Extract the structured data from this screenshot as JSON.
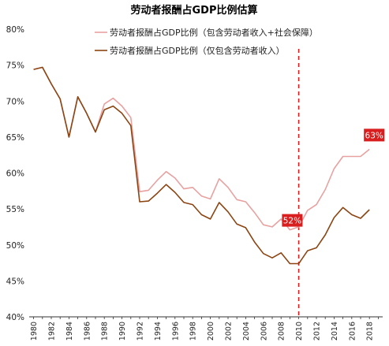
{
  "chart_data": {
    "type": "line",
    "title": "劳动者报酬占GDP比例估算",
    "xlabel": "",
    "ylabel": "",
    "ylim": [
      0.4,
      0.8
    ],
    "yticks": [
      "80%",
      "75%",
      "70%",
      "65%",
      "60%",
      "55%",
      "50%",
      "45%",
      "40%"
    ],
    "xlim": [
      1979.5,
      2019.5
    ],
    "xticks": [
      "1980",
      "1982",
      "1984",
      "1986",
      "1988",
      "1990",
      "1992",
      "1994",
      "1996",
      "1998",
      "2000",
      "2002",
      "2004",
      "2006",
      "2008",
      "2010",
      "2012",
      "2014",
      "2016",
      "2018"
    ],
    "legend_position": "top-center",
    "x": [
      1980,
      1981,
      1982,
      1983,
      1984,
      1985,
      1986,
      1987,
      1988,
      1989,
      1990,
      1991,
      1992,
      1993,
      1994,
      1995,
      1996,
      1997,
      1998,
      1999,
      2000,
      2001,
      2002,
      2003,
      2004,
      2005,
      2006,
      2007,
      2008,
      2009,
      2010,
      2011,
      2012,
      2013,
      2014,
      2015,
      2016,
      2017,
      2018
    ],
    "series": [
      {
        "name": "劳动者报酬占GDP比例（包含劳动者收入+社会保障）",
        "color": "#e8a1a1",
        "values": [
          0.744,
          0.747,
          0.724,
          0.703,
          0.65,
          0.706,
          0.683,
          0.657,
          0.696,
          0.704,
          0.693,
          0.677,
          0.574,
          0.576,
          0.59,
          0.602,
          0.593,
          0.578,
          0.58,
          0.568,
          0.564,
          0.592,
          0.58,
          0.563,
          0.56,
          0.545,
          0.528,
          0.525,
          0.536,
          0.521,
          0.525,
          0.548,
          0.556,
          0.577,
          0.606,
          0.623,
          0.623,
          0.623,
          0.633
        ]
      },
      {
        "name": "劳动者报酬占GDP比例（仅包含劳动者收入）",
        "color": "#8b4513",
        "values": [
          0.744,
          0.747,
          0.724,
          0.703,
          0.65,
          0.706,
          0.683,
          0.657,
          0.688,
          0.693,
          0.683,
          0.666,
          0.56,
          0.561,
          0.572,
          0.584,
          0.573,
          0.559,
          0.556,
          0.542,
          0.536,
          0.559,
          0.546,
          0.529,
          0.524,
          0.504,
          0.488,
          0.482,
          0.489,
          0.474,
          0.474,
          0.492,
          0.496,
          0.514,
          0.538,
          0.552,
          0.542,
          0.537,
          0.549
        ]
      }
    ],
    "reference_line": {
      "x": 2010,
      "color": "#d81e1e",
      "style": "dashed"
    },
    "annotations": [
      {
        "text": "52%",
        "x": 2009,
        "y": 0.521,
        "bg": "#d81e1e"
      },
      {
        "text": "63%",
        "x": 2018,
        "y": 0.633,
        "bg": "#d81e1e"
      }
    ]
  }
}
